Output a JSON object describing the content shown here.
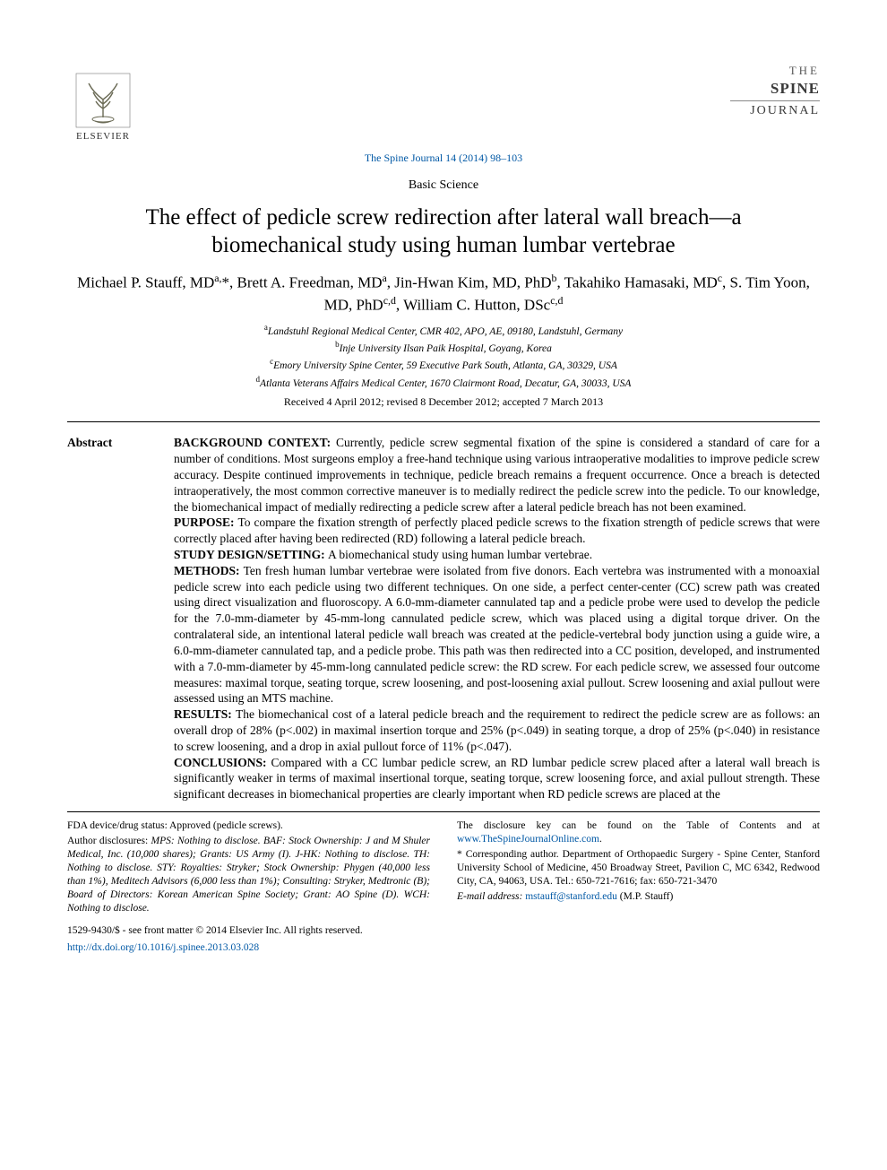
{
  "header": {
    "publisher": "ELSEVIER",
    "journal_logo": {
      "line1": "THE",
      "line2": "SPINE",
      "line3": "JOURNAL"
    },
    "citation": "The Spine Journal 14 (2014) 98–103",
    "section": "Basic Science"
  },
  "article": {
    "title": "The effect of pedicle screw redirection after lateral wall breach—a biomechanical study using human lumbar vertebrae",
    "authors_html": "Michael P. Stauff, MD<sup>a,</sup>*, Brett A. Freedman, MD<sup>a</sup>, Jin-Hwan Kim, MD, PhD<sup>b</sup>, Takahiko Hamasaki, MD<sup>c</sup>, S. Tim Yoon, MD, PhD<sup>c,d</sup>, William C. Hutton, DSc<sup>c,d</sup>",
    "affiliations": [
      {
        "key": "a",
        "text": "Landstuhl Regional Medical Center, CMR 402, APO, AE, 09180, Landstuhl, Germany"
      },
      {
        "key": "b",
        "text": "Inje University Ilsan Paik Hospital, Goyang, Korea"
      },
      {
        "key": "c",
        "text": "Emory University Spine Center, 59 Executive Park South, Atlanta, GA, 30329, USA"
      },
      {
        "key": "d",
        "text": "Atlanta Veterans Affairs Medical Center, 1670 Clairmont Road, Decatur, GA, 30033, USA"
      }
    ],
    "dates": "Received 4 April 2012; revised 8 December 2012; accepted 7 March 2013"
  },
  "abstract": {
    "label": "Abstract",
    "sections": [
      {
        "heading": "BACKGROUND CONTEXT:",
        "text": "Currently, pedicle screw segmental fixation of the spine is considered a standard of care for a number of conditions. Most surgeons employ a free-hand technique using various intraoperative modalities to improve pedicle screw accuracy. Despite continued improvements in technique, pedicle breach remains a frequent occurrence. Once a breach is detected intraoperatively, the most common corrective maneuver is to medially redirect the pedicle screw into the pedicle. To our knowledge, the biomechanical impact of medially redirecting a pedicle screw after a lateral pedicle breach has not been examined."
      },
      {
        "heading": "PURPOSE:",
        "text": "To compare the fixation strength of perfectly placed pedicle screws to the fixation strength of pedicle screws that were correctly placed after having been redirected (RD) following a lateral pedicle breach."
      },
      {
        "heading": "STUDY DESIGN/SETTING:",
        "text": "A biomechanical study using human lumbar vertebrae."
      },
      {
        "heading": "METHODS:",
        "text": "Ten fresh human lumbar vertebrae were isolated from five donors. Each vertebra was instrumented with a monoaxial pedicle screw into each pedicle using two different techniques. On one side, a perfect center-center (CC) screw path was created using direct visualization and fluoroscopy. A 6.0-mm-diameter cannulated tap and a pedicle probe were used to develop the pedicle for the 7.0-mm-diameter by 45-mm-long cannulated pedicle screw, which was placed using a digital torque driver. On the contralateral side, an intentional lateral pedicle wall breach was created at the pedicle-vertebral body junction using a guide wire, a 6.0-mm-diameter cannulated tap, and a pedicle probe. This path was then redirected into a CC position, developed, and instrumented with a 7.0-mm-diameter by 45-mm-long cannulated pedicle screw: the RD screw. For each pedicle screw, we assessed four outcome measures: maximal torque, seating torque, screw loosening, and post-loosening axial pullout. Screw loosening and axial pullout were assessed using an MTS machine."
      },
      {
        "heading": "RESULTS:",
        "text": "The biomechanical cost of a lateral pedicle breach and the requirement to redirect the pedicle screw are as follows: an overall drop of 28% (p<.002) in maximal insertion torque and 25% (p<.049) in seating torque, a drop of 25% (p<.040) in resistance to screw loosening, and a drop in axial pullout force of 11% (p<.047)."
      },
      {
        "heading": "CONCLUSIONS:",
        "text": "Compared with a CC lumbar pedicle screw, an RD lumbar pedicle screw placed after a lateral wall breach is significantly weaker in terms of maximal insertional torque, seating torque, screw loosening force, and axial pullout strength. These significant decreases in biomechanical properties are clearly important when RD pedicle screws are placed at the"
      }
    ]
  },
  "footer": {
    "left": {
      "fda": "FDA device/drug status: Approved (pedicle screws).",
      "disclosures_label": "Author disclosures:",
      "disclosures": " MPS: Nothing to disclose. BAF: Stock Ownership: J and M Shuler Medical, Inc. (10,000 shares); Grants: US Army (I). J-HK: Nothing to disclose. TH: Nothing to disclose. STY: Royalties: Stryker; Stock Ownership: Phygen (40,000 less than 1%), Meditech Advisors (6,000 less than 1%); Consulting: Stryker, Medtronic (B); Board of Directors: Korean American Spine Society; Grant: AO Spine (D). WCH: Nothing to disclose."
    },
    "right": {
      "disclosure_key": "The disclosure key can be found on the Table of Contents and at ",
      "disclosure_link": "www.TheSpineJournalOnline.com",
      "corr_label": "* Corresponding author.",
      "corr_text": " Department of Orthopaedic Surgery - Spine Center, Stanford University School of Medicine, 450 Broadway Street, Pavilion C, MC 6342, Redwood City, CA, 94063, USA. Tel.: 650-721-7616; fax: 650-721-3470",
      "email_label": "E-mail address:",
      "email": "mstauff@stanford.edu",
      "email_paren": " (M.P. Stauff)"
    },
    "copyright": "1529-9430/$ - see front matter © 2014 Elsevier Inc. All rights reserved.",
    "doi": "http://dx.doi.org/10.1016/j.spinee.2013.03.028"
  },
  "colors": {
    "link": "#0058a5",
    "text": "#000000",
    "bg": "#ffffff"
  }
}
